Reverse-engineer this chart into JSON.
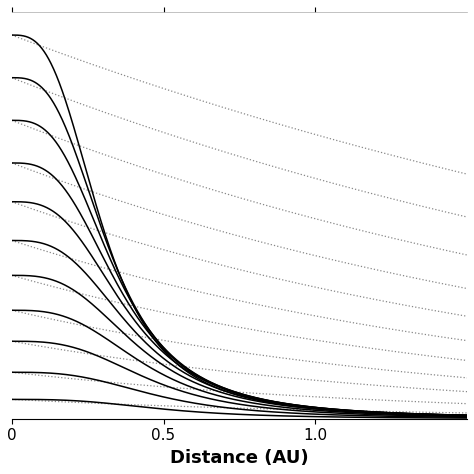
{
  "xlabel": "Distance (AU)",
  "xlim": [
    0,
    1.5
  ],
  "ylim": [
    0,
    1.05
  ],
  "n_curves": 11,
  "x_max": 1.5,
  "background_color": "#ffffff",
  "line_color": "#000000",
  "dotted_color": "#888888",
  "xlabel_fontsize": 13,
  "tick_fontsize": 11,
  "figsize": [
    4.74,
    4.74
  ],
  "dpi": 100,
  "amplitudes": [
    0.99,
    0.88,
    0.77,
    0.66,
    0.56,
    0.46,
    0.37,
    0.28,
    0.2,
    0.12,
    0.05
  ],
  "solid_x0": [
    0.3,
    0.32,
    0.34,
    0.36,
    0.38,
    0.4,
    0.42,
    0.44,
    0.46,
    0.48,
    0.5
  ],
  "solid_p": [
    3.0,
    3.0,
    3.0,
    3.0,
    3.0,
    3.0,
    3.0,
    3.0,
    3.0,
    3.0,
    3.0
  ],
  "dotted_k": [
    0.3,
    0.35,
    0.4,
    0.45,
    0.5,
    0.55,
    0.6,
    0.65,
    0.7,
    0.75,
    0.8
  ]
}
